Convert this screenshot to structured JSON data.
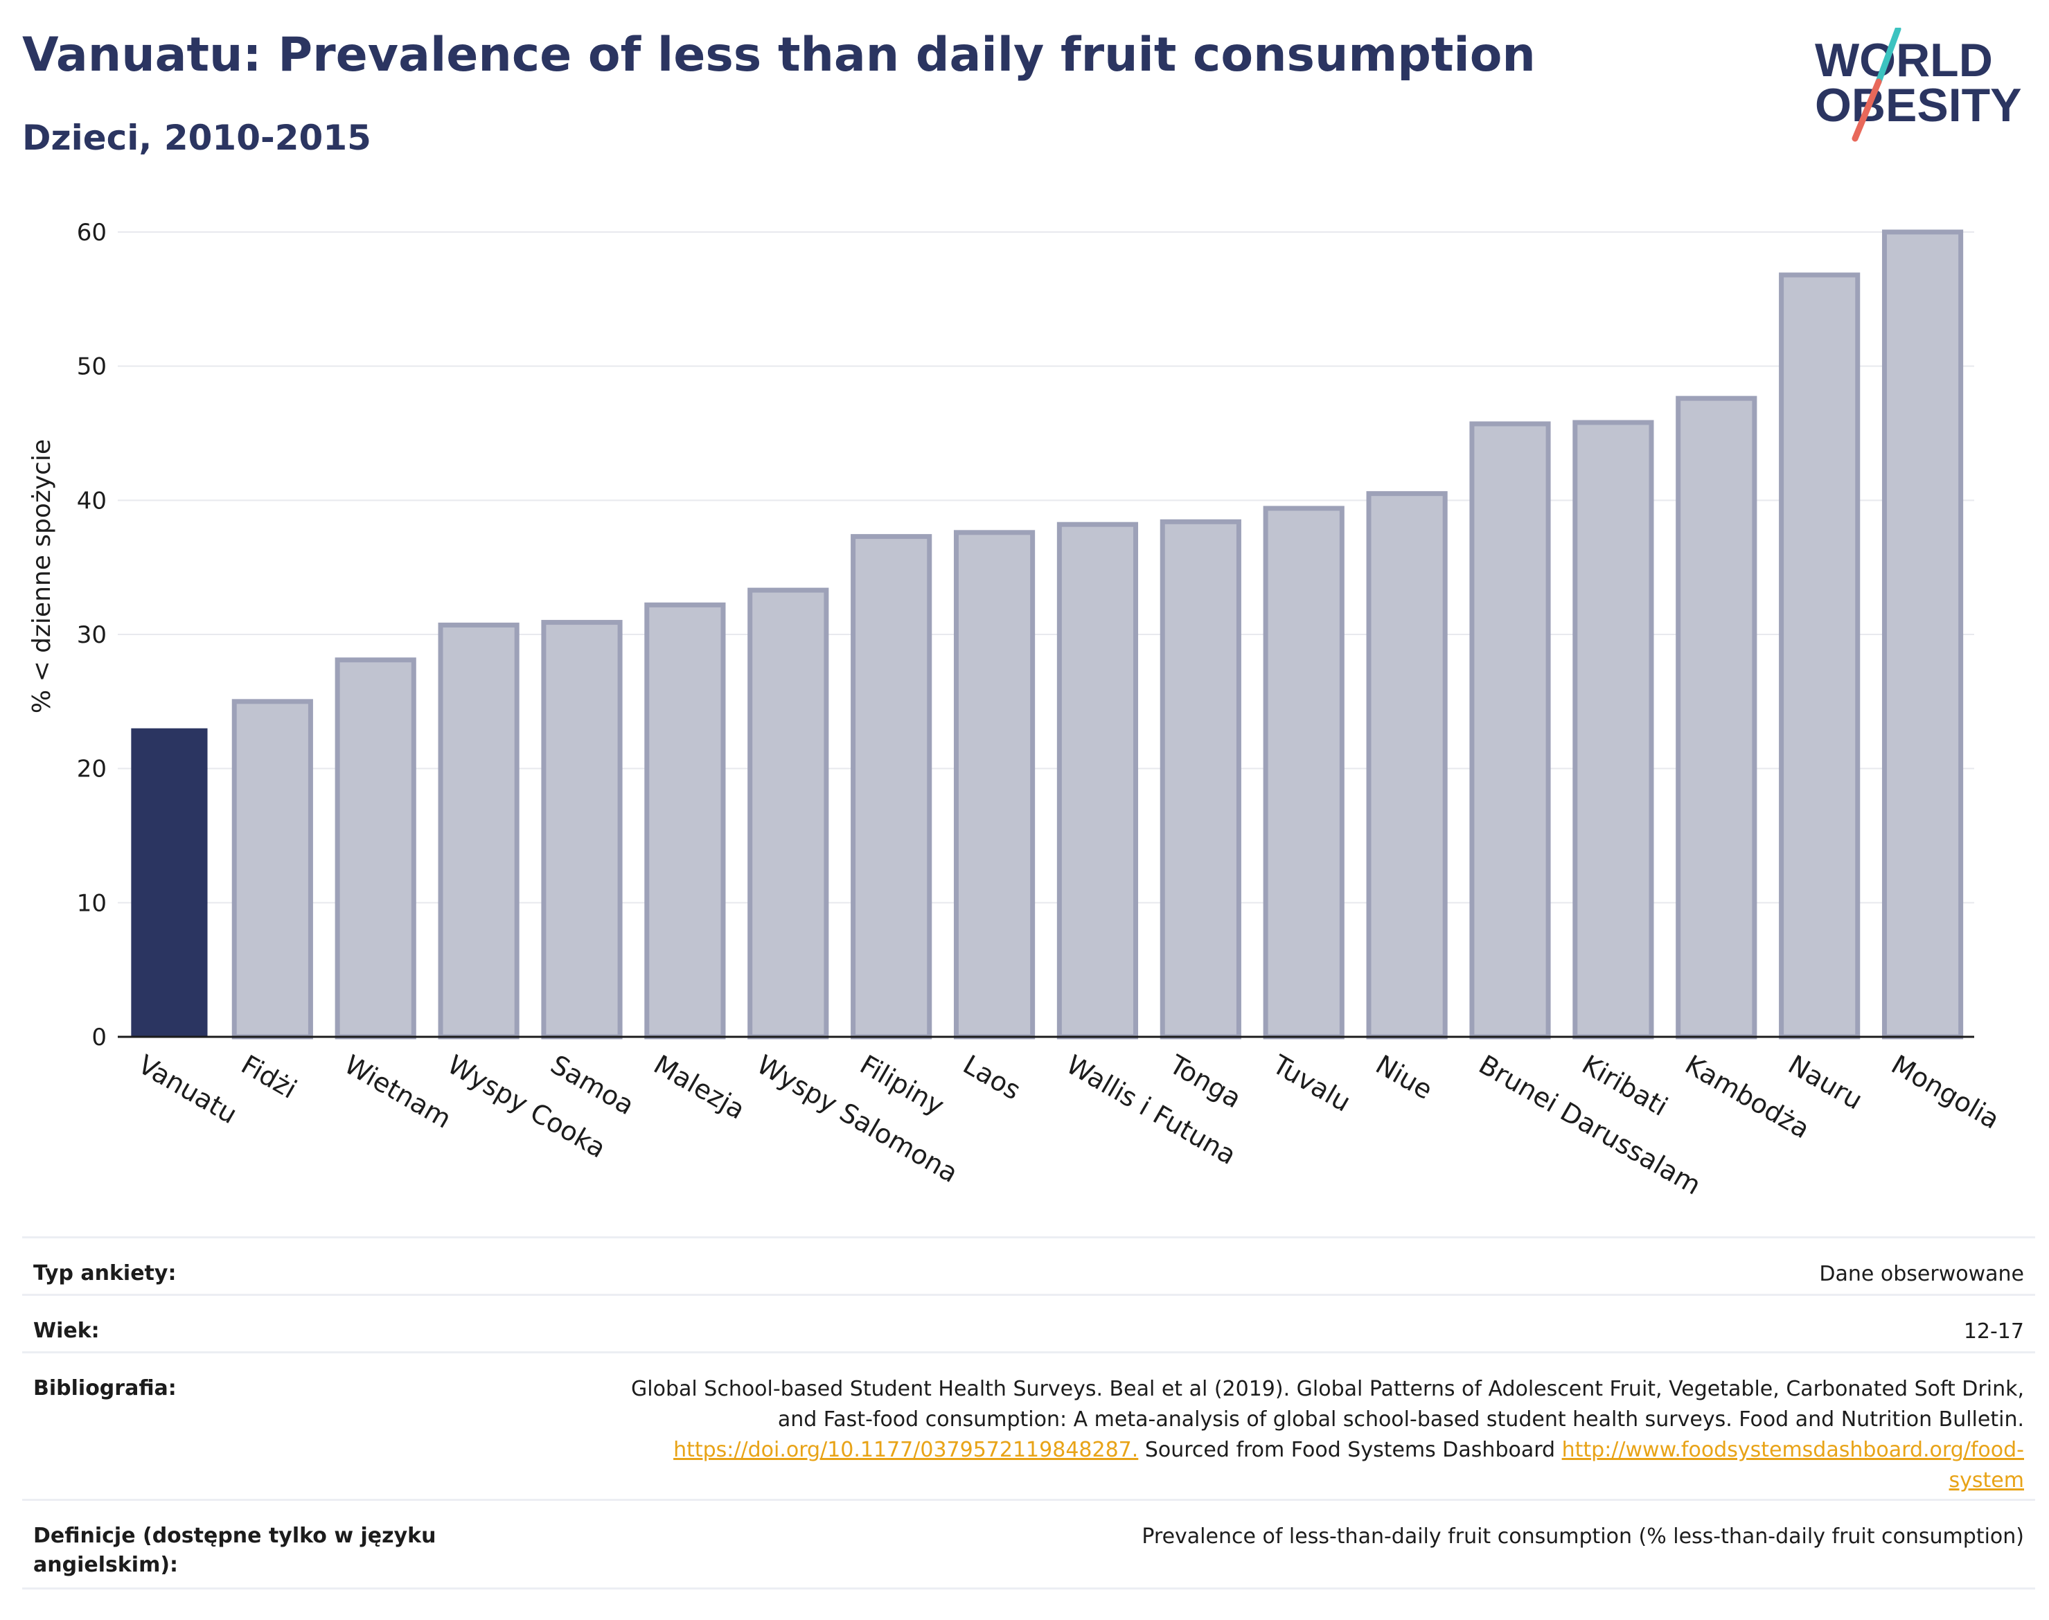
{
  "header": {
    "title": "Vanuatu: Prevalence of less than daily fruit consumption",
    "subtitle": "Dzieci, 2010-2015"
  },
  "logo": {
    "line1": "WORLD",
    "line2": "OBESITY",
    "colors": {
      "text": "#2b3561",
      "slash_teal": "#3cc3c0",
      "slash_red": "#e8685a"
    }
  },
  "chart_data": {
    "type": "bar",
    "categories": [
      "Vanuatu",
      "Fidżi",
      "Wietnam",
      "Wyspy Cooka",
      "Samoa",
      "Malezja",
      "Wyspy Salomona",
      "Filipiny",
      "Laos",
      "Wallis i Futuna",
      "Tonga",
      "Tuvalu",
      "Niue",
      "Brunei Darussalam",
      "Kiribati",
      "Kambodża",
      "Nauru",
      "Mongolia"
    ],
    "values": [
      23.0,
      25.0,
      28.1,
      30.7,
      30.9,
      32.2,
      33.3,
      37.3,
      37.6,
      38.2,
      38.4,
      39.4,
      40.5,
      45.7,
      45.8,
      47.6,
      56.8,
      60.0
    ],
    "highlight": "Vanuatu",
    "ylabel": "% < dzienne spożycie",
    "xlabel": "",
    "ylim": [
      0,
      60
    ],
    "yticks": [
      0,
      10,
      20,
      30,
      40,
      50,
      60
    ],
    "grid": true,
    "colors": {
      "highlight": "#2b3561",
      "other_fill": "#c0c3d0",
      "other_stroke": "#9da1b8"
    }
  },
  "info": {
    "survey_label": "Typ ankiety:",
    "survey_value": "Dane obserwowane",
    "age_label": "Wiek:",
    "age_value": "12-17",
    "bib_label": "Bibliografia:",
    "bib_text1": "Global School-based Student Health Surveys. Beal et al (2019). Global Patterns of Adolescent Fruit, Vegetable, Carbonated Soft Drink,",
    "bib_text2": "and Fast-food consumption: A meta-analysis of global school-based student health surveys. Food and Nutrition Bulletin.",
    "bib_link1": "https://doi.org/10.1177/0379572119848287.",
    "bib_text3": " Sourced from Food Systems Dashboard ",
    "bib_link2a": "http://www.foodsystemsdashboard.org/food-",
    "bib_link2b": "system",
    "def_label": "Definicje (dostępne tylko w języku angielskim):",
    "def_value": "Prevalence of less-than-daily fruit consumption (% less-than-daily fruit consumption)",
    "link_color": "#e8a317"
  }
}
